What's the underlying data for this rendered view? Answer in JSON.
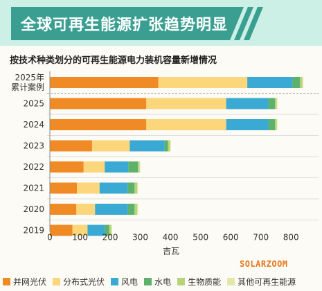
{
  "banner": {
    "title": "全球可再生能源扩张趋势明显"
  },
  "chart_data": {
    "type": "bar",
    "orientation": "horizontal",
    "stacked": true,
    "title": "按技术种类划分的可再生能源电力装机容量新增情况",
    "xlabel": "吉瓦",
    "ylabel": "",
    "xlim": [
      0,
      850
    ],
    "xticks": [
      0,
      100,
      200,
      300,
      400,
      500,
      600,
      700,
      800
    ],
    "categories": [
      "2025年\n累计案例",
      "2025",
      "2024",
      "2023",
      "2022",
      "2021",
      "2020",
      "2019"
    ],
    "series": [
      {
        "name": "并网光伏",
        "color": "#f08a24",
        "values": [
          360,
          320,
          320,
          140,
          112,
          90,
          88,
          75
        ]
      },
      {
        "name": "分布式光伏",
        "color": "#fbd67a",
        "values": [
          295,
          265,
          265,
          125,
          70,
          75,
          62,
          50
        ]
      },
      {
        "name": "风电",
        "color": "#3aa9d4",
        "values": [
          150,
          140,
          140,
          115,
          78,
          93,
          108,
          57
        ]
      },
      {
        "name": "水电",
        "color": "#5cb16d",
        "values": [
          25,
          22,
          22,
          12,
          32,
          23,
          23,
          15
        ]
      },
      {
        "name": "生物质能",
        "color": "#b6d47a",
        "values": [
          8,
          6,
          6,
          7,
          6,
          9,
          9,
          7
        ]
      },
      {
        "name": "其他可再生能源",
        "color": "#e6e6a8",
        "values": [
          3,
          2,
          2,
          2,
          2,
          3,
          3,
          2
        ]
      }
    ],
    "grid": false,
    "legend_position": "bottom"
  },
  "watermark": "SOLARZOOM"
}
